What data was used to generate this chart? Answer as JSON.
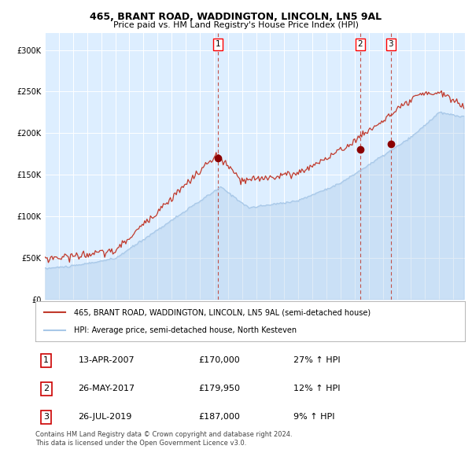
{
  "title": "465, BRANT ROAD, WADDINGTON, LINCOLN, LN5 9AL",
  "subtitle": "Price paid vs. HM Land Registry's House Price Index (HPI)",
  "legend_line1": "465, BRANT ROAD, WADDINGTON, LINCOLN, LN5 9AL (semi-detached house)",
  "legend_line2": "HPI: Average price, semi-detached house, North Kesteven",
  "footer1": "Contains HM Land Registry data © Crown copyright and database right 2024.",
  "footer2": "This data is licensed under the Open Government Licence v3.0.",
  "transactions": [
    {
      "num": "1",
      "date": "13-APR-2007",
      "price": "£170,000",
      "hpi": "27% ↑ HPI",
      "year": 2007.28,
      "price_val": 170000
    },
    {
      "num": "2",
      "date": "26-MAY-2017",
      "price": "£179,950",
      "hpi": "12% ↑ HPI",
      "year": 2017.4,
      "price_val": 179950
    },
    {
      "num": "3",
      "date": "26-JUL-2019",
      "price": "£187,000",
      "hpi": "9% ↑ HPI",
      "year": 2019.57,
      "price_val": 187000
    }
  ],
  "hpi_color": "#a8c8e8",
  "price_color": "#c0392b",
  "dot_color": "#8b0000",
  "vline_color": "#c0392b",
  "plot_bg": "#ddeeff",
  "grid_color": "#ffffff",
  "ylim": [
    0,
    320000
  ],
  "yticks": [
    0,
    50000,
    100000,
    150000,
    200000,
    250000,
    300000
  ],
  "xmin": 1995.0,
  "xmax": 2024.83
}
